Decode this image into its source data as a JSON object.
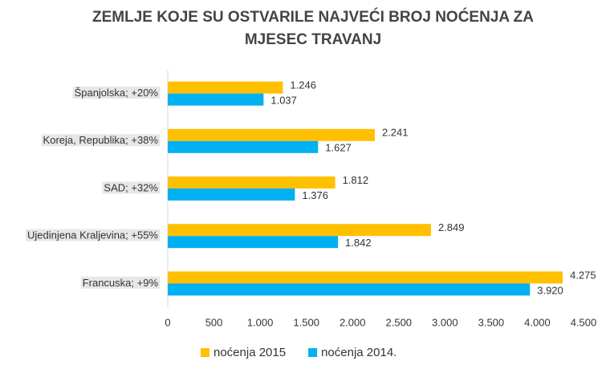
{
  "chart_data": {
    "type": "hbar",
    "title": [
      "ZEMLJE KOJE SU OSTVARILE NAJVEĆI BROJ NOĆENJA ZA",
      "MJESEC TRAVANJ"
    ],
    "categories": [
      "Španjolska; +20%",
      "Koreja, Republika; +38%",
      "SAD; +32%",
      "Ujedinjena Kraljevina; +55%",
      "Francuska; +9%"
    ],
    "series": [
      {
        "name": "noćenja 2015",
        "color": "#ffc000",
        "values": [
          1246,
          2241,
          1812,
          2849,
          4275
        ],
        "value_labels": [
          "1.246",
          "2.241",
          "1.812",
          "2.849",
          "4.275"
        ]
      },
      {
        "name": "noćenja 2014.",
        "color": "#00b0f0",
        "values": [
          1037,
          1627,
          1376,
          1842,
          3920
        ],
        "value_labels": [
          "1.037",
          "1.627",
          "1.376",
          "1.842",
          "3.920"
        ]
      }
    ],
    "xlim": [
      0,
      4500
    ],
    "xticks": [
      0,
      500,
      {
        "value": 1000,
        "label": "1.000"
      },
      {
        "value": 1500,
        "label": "1.500"
      },
      {
        "value": 2000,
        "label": "2.000"
      },
      {
        "value": 2500,
        "label": "2.500"
      },
      {
        "value": 3000,
        "label": "3.000"
      },
      {
        "value": 3500,
        "label": "3.500"
      },
      {
        "value": 4000,
        "label": "4.000"
      },
      {
        "value": 4500,
        "label": "4.500"
      }
    ],
    "legend": "bottom",
    "grid": false
  }
}
